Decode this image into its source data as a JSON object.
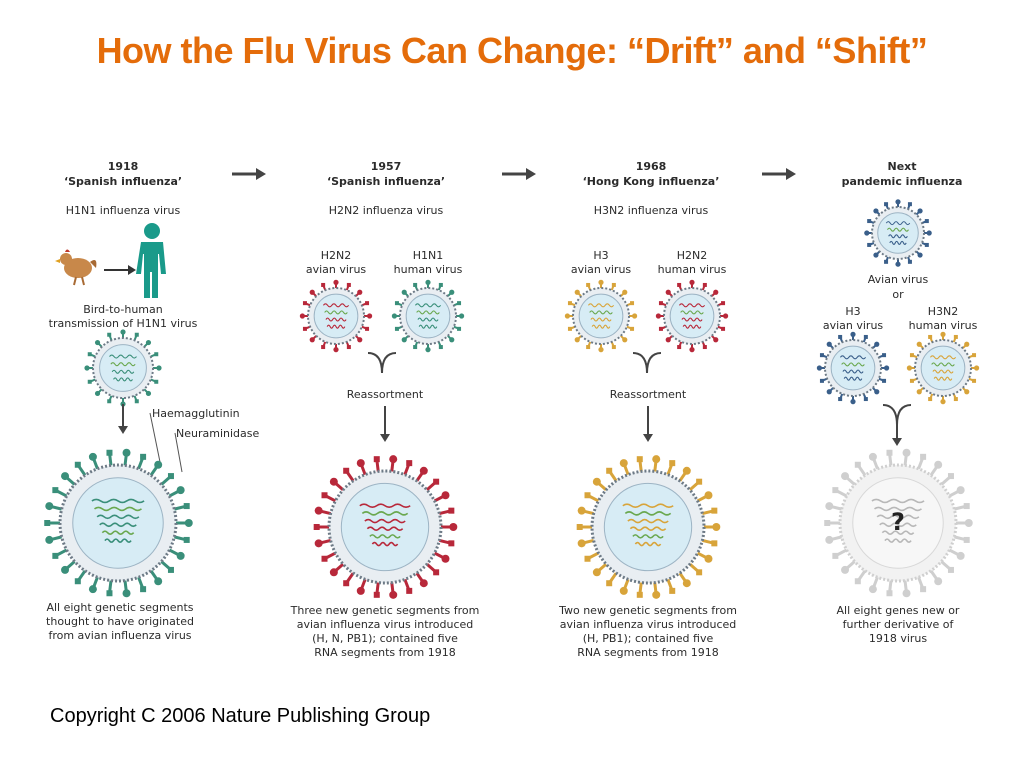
{
  "slide": {
    "title": "How the Flu Virus Can Change: “Drift” and “Shift”",
    "copyright": "Copyright C 2006 Nature Publishing Group"
  },
  "colors": {
    "title": "#E46C0A",
    "h1n1_spike": "#3a8f7a",
    "h2n2_spike": "#b8283a",
    "h3n2_spike": "#d8a43a",
    "avian_spike": "#3a5f8a",
    "unknown_spike": "#cfcfcf",
    "virus_core": "#d7ecf5"
  },
  "panels": [
    {
      "year": "1918",
      "name": "‘Spanish influenza’",
      "subtype": "H1N1 influenza virus",
      "transmission": [
        "Bird-to-human",
        "transmission of H1N1 virus"
      ],
      "annotations": [
        "Haemagglutinin",
        "Neuraminidase"
      ],
      "caption": [
        "All eight genetic segments",
        "thought to have originated",
        "from avian influenza virus"
      ]
    },
    {
      "year": "1957",
      "name": "‘Spanish influenza’",
      "subtype": "H2N2 influenza virus",
      "parents": [
        {
          "label": [
            "H2N2",
            "avian virus"
          ]
        },
        {
          "label": [
            "H1N1",
            "human virus"
          ]
        }
      ],
      "process": "Reassortment",
      "caption": [
        "Three new genetic segments from",
        "avian influenza virus introduced",
        "(H, N, PB1); contained five",
        "RNA segments from 1918"
      ]
    },
    {
      "year": "1968",
      "name": "‘Hong Kong influenza’",
      "subtype": "H3N2 influenza virus",
      "parents": [
        {
          "label": [
            "H3",
            "avian virus"
          ]
        },
        {
          "label": [
            "H2N2",
            "human virus"
          ]
        }
      ],
      "process": "Reassortment",
      "caption": [
        "Two new genetic segments from",
        "avian influenza virus introduced",
        "(H, PB1); contained five",
        "RNA segments from 1918"
      ]
    },
    {
      "year": "Next",
      "name": "pandemic influenza",
      "top_virus": [
        "Avian virus",
        "or"
      ],
      "parents": [
        {
          "label": [
            "H3",
            "avian virus"
          ]
        },
        {
          "label": [
            "H3N2",
            "human virus"
          ]
        }
      ],
      "unknown_mark": "?",
      "caption": [
        "All eight genes new or",
        "further derivative of",
        "1918 virus"
      ]
    }
  ]
}
